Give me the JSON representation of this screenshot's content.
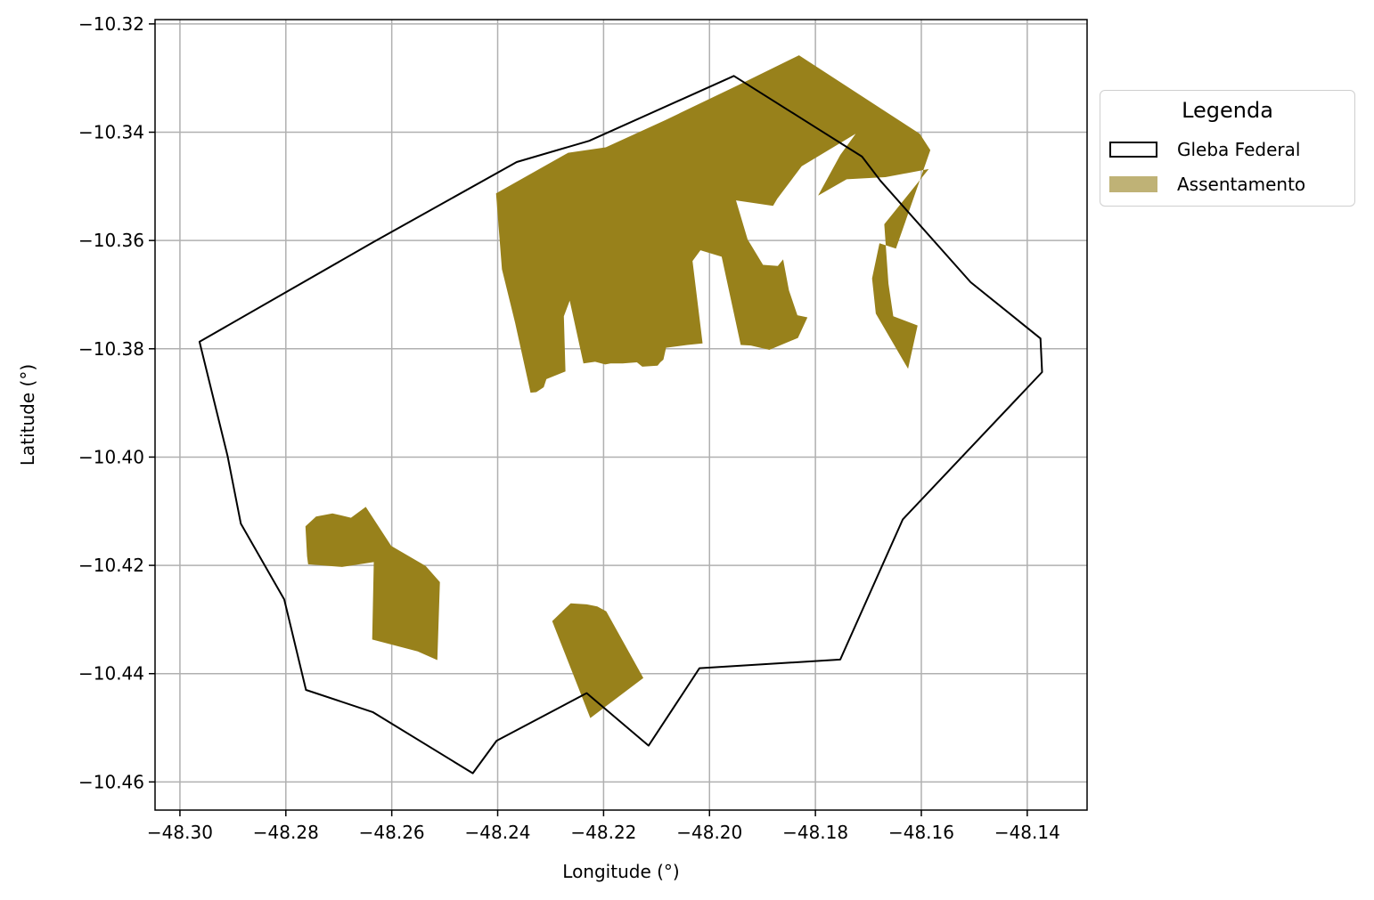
{
  "chart_data": {
    "type": "map",
    "xlabel": "Longitude (°)",
    "ylabel": "Latitude (°)",
    "xlim": [
      -48.3047,
      -48.1287
    ],
    "ylim": [
      -10.4652,
      -10.3192
    ],
    "grid": true,
    "x_ticks": [
      -48.3,
      -48.28,
      -48.26,
      -48.24,
      -48.22,
      -48.2,
      -48.18,
      -48.16,
      -48.14
    ],
    "x_tick_labels": [
      "−48.30",
      "−48.28",
      "−48.26",
      "−48.24",
      "−48.22",
      "−48.20",
      "−48.18",
      "−48.16",
      "−48.14"
    ],
    "y_ticks": [
      -10.32,
      -10.34,
      -10.36,
      -10.38,
      -10.4,
      -10.42,
      -10.44,
      -10.46
    ],
    "y_tick_labels": [
      "−10.32",
      "−10.34",
      "−10.36",
      "−10.38",
      "−10.40",
      "−10.42",
      "−10.44",
      "−10.46"
    ],
    "legend": {
      "title": "Legenda",
      "placement": "outside-right",
      "entries": [
        {
          "label": "Gleba Federal",
          "style": "outline",
          "color": "#000000"
        },
        {
          "label": "Assentamento",
          "style": "fill",
          "color": "#bfb276"
        }
      ]
    },
    "colors": {
      "assentamento": "#98811b",
      "gleba": "#000000",
      "grid": "#b0b0b0"
    },
    "gleba_federal": [
      [
        -48.2963,
        -10.3787
      ],
      [
        -48.2635,
        -10.3603
      ],
      [
        -48.2364,
        -10.3455
      ],
      [
        -48.2227,
        -10.3416
      ],
      [
        -48.1954,
        -10.3296
      ],
      [
        -48.1803,
        -10.3389
      ],
      [
        -48.1712,
        -10.3445
      ],
      [
        -48.1677,
        -10.349
      ],
      [
        -48.1507,
        -10.3677
      ],
      [
        -48.1375,
        -10.3781
      ],
      [
        -48.1372,
        -10.3843
      ],
      [
        -48.1635,
        -10.4115
      ],
      [
        -48.1753,
        -10.4374
      ],
      [
        -48.2019,
        -10.439
      ],
      [
        -48.2115,
        -10.4533
      ],
      [
        -48.2232,
        -10.4436
      ],
      [
        -48.2402,
        -10.4524
      ],
      [
        -48.2447,
        -10.4584
      ],
      [
        -48.2636,
        -10.4471
      ],
      [
        -48.2762,
        -10.443
      ],
      [
        -48.2803,
        -10.4263
      ],
      [
        -48.2885,
        -10.4123
      ],
      [
        -48.291,
        -10.3998
      ],
      [
        -48.2963,
        -10.3787
      ]
    ],
    "assentamento": [
      [
        [
          -48.2403,
          -10.3513
        ],
        [
          -48.2267,
          -10.3438
        ],
        [
          -48.2196,
          -10.3428
        ],
        [
          -48.2084,
          -10.3378
        ],
        [
          -48.1948,
          -10.3314
        ],
        [
          -48.1831,
          -10.3258
        ],
        [
          -48.1603,
          -10.3403
        ],
        [
          -48.1583,
          -10.3433
        ],
        [
          -48.1648,
          -10.3615
        ],
        [
          -48.1679,
          -10.3605
        ],
        [
          -48.1693,
          -10.367
        ],
        [
          -48.1686,
          -10.3735
        ],
        [
          -48.1625,
          -10.3837
        ],
        [
          -48.1607,
          -10.3757
        ],
        [
          -48.1653,
          -10.374
        ],
        [
          -48.1662,
          -10.368
        ],
        [
          -48.167,
          -10.357
        ],
        [
          -48.1586,
          -10.3468
        ],
        [
          -48.1668,
          -10.3483
        ],
        [
          -48.1741,
          -10.3487
        ],
        [
          -48.1795,
          -10.3517
        ],
        [
          -48.1753,
          -10.3442
        ],
        [
          -48.1724,
          -10.3403
        ],
        [
          -48.1826,
          -10.3463
        ],
        [
          -48.1872,
          -10.3523
        ],
        [
          -48.188,
          -10.3536
        ],
        [
          -48.195,
          -10.3526
        ],
        [
          -48.1928,
          -10.3598
        ],
        [
          -48.1899,
          -10.3645
        ],
        [
          -48.1871,
          -10.3647
        ],
        [
          -48.1861,
          -10.3635
        ],
        [
          -48.185,
          -10.3692
        ],
        [
          -48.1834,
          -10.3738
        ],
        [
          -48.1815,
          -10.3742
        ],
        [
          -48.1833,
          -10.378
        ],
        [
          -48.1887,
          -10.3802
        ],
        [
          -48.1922,
          -10.3794
        ],
        [
          -48.1941,
          -10.3793
        ],
        [
          -48.1977,
          -10.363
        ],
        [
          -48.2017,
          -10.3618
        ],
        [
          -48.2032,
          -10.3638
        ],
        [
          -48.2013,
          -10.379
        ],
        [
          -48.2042,
          -10.3793
        ],
        [
          -48.2082,
          -10.3798
        ],
        [
          -48.2087,
          -10.382
        ],
        [
          -48.2093,
          -10.3825
        ],
        [
          -48.2098,
          -10.3831
        ],
        [
          -48.2127,
          -10.3833
        ],
        [
          -48.2137,
          -10.3825
        ],
        [
          -48.2164,
          -10.3827
        ],
        [
          -48.2187,
          -10.3827
        ],
        [
          -48.2197,
          -10.3829
        ],
        [
          -48.2216,
          -10.3824
        ],
        [
          -48.2238,
          -10.3827
        ],
        [
          -48.2264,
          -10.3711
        ],
        [
          -48.2275,
          -10.374
        ],
        [
          -48.2272,
          -10.3842
        ],
        [
          -48.2308,
          -10.3856
        ],
        [
          -48.2313,
          -10.3871
        ],
        [
          -48.2327,
          -10.388
        ],
        [
          -48.2338,
          -10.3881
        ],
        [
          -48.2367,
          -10.3752
        ],
        [
          -48.2392,
          -10.3653
        ],
        [
          -48.2403,
          -10.3513
        ]
      ],
      [
        [
          -48.2763,
          -10.4128
        ],
        [
          -48.2743,
          -10.411
        ],
        [
          -48.2712,
          -10.4104
        ],
        [
          -48.2677,
          -10.4112
        ],
        [
          -48.2649,
          -10.4092
        ],
        [
          -48.2601,
          -10.4164
        ],
        [
          -48.2536,
          -10.4201
        ],
        [
          -48.2509,
          -10.4231
        ],
        [
          -48.2514,
          -10.4375
        ],
        [
          -48.2551,
          -10.4359
        ],
        [
          -48.2637,
          -10.4337
        ],
        [
          -48.2634,
          -10.4194
        ],
        [
          -48.2694,
          -10.4203
        ],
        [
          -48.2758,
          -10.4198
        ],
        [
          -48.276,
          -10.4183
        ],
        [
          -48.2763,
          -10.4128
        ]
      ],
      [
        [
          -48.2297,
          -10.4303
        ],
        [
          -48.2262,
          -10.427
        ],
        [
          -48.2232,
          -10.4272
        ],
        [
          -48.2212,
          -10.4276
        ],
        [
          -48.2195,
          -10.4285
        ],
        [
          -48.2125,
          -10.4408
        ],
        [
          -48.2225,
          -10.4482
        ],
        [
          -48.2297,
          -10.4303
        ]
      ]
    ]
  }
}
